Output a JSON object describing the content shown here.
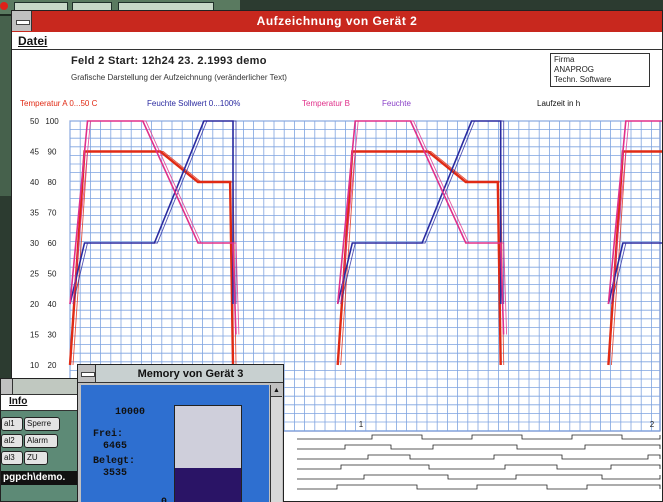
{
  "main_window": {
    "title": "Aufzeichnung von Gerät  2",
    "menu": [
      "Datei"
    ]
  },
  "info": {
    "heading": "Feld 2    Start: 12h24  23. 2.1993   demo",
    "subtitle": "Grafische Darstellung der Aufzeichnung (veränderlicher Text)",
    "company_lines": [
      "Firma",
      "ANAPROG",
      "Techn. Software"
    ]
  },
  "chart_data": {
    "type": "line",
    "legend": [
      {
        "label": "Temperatur A 0...50 C",
        "color": "#e02a14"
      },
      {
        "label": "Feuchte Sollwert 0...100%",
        "color": "#2a2aa0"
      },
      {
        "label": "Temperatur B",
        "color": "#e0308a"
      },
      {
        "label": "Feuchte",
        "color": "#8a40c8"
      },
      {
        "label": "Laufzeit in h",
        "color": "#111111"
      }
    ],
    "y_left_ticks": [
      "50",
      "45",
      "40",
      "35",
      "30",
      "25",
      "20",
      "15",
      "10"
    ],
    "y_right_ticks": [
      "100",
      "90",
      "80",
      "70",
      "60",
      "50",
      "40",
      "30",
      "20"
    ],
    "x_ticks": [
      "1",
      "2"
    ],
    "grid": true,
    "cycle_start_hours": [
      0.0,
      0.92,
      1.85
    ],
    "series": [
      {
        "name": "Temperatur A 0...50 C",
        "color": "#e02a14",
        "cycle_profile": [
          [
            0.0,
            10
          ],
          [
            0.05,
            45
          ],
          [
            0.31,
            45
          ],
          [
            0.44,
            40
          ],
          [
            0.55,
            40
          ],
          [
            0.56,
            10
          ]
        ]
      },
      {
        "name": "Feuchte Sollwert 0...100%",
        "color": "#2a2aa0",
        "cycle_profile": [
          [
            0.0,
            20
          ],
          [
            0.05,
            30
          ],
          [
            0.29,
            30
          ],
          [
            0.46,
            50
          ],
          [
            0.56,
            50
          ],
          [
            0.56,
            20
          ]
        ]
      },
      {
        "name": "Temperatur B",
        "color": "#e0308a",
        "cycle_profile": [
          [
            0.0,
            20
          ],
          [
            0.06,
            50
          ],
          [
            0.25,
            50
          ],
          [
            0.44,
            30
          ],
          [
            0.56,
            30
          ],
          [
            0.57,
            15
          ]
        ]
      }
    ]
  },
  "memory_window": {
    "title": "Memory von Gerät  3",
    "total": "10000",
    "free_label": "Frei:",
    "free_value": "6465",
    "used_label": "Belegt:",
    "used_value": "3535",
    "zero": "0",
    "used_fraction": 0.3535
  },
  "info_window": {
    "menu": "Info",
    "buttons": [
      "al1",
      "Sperre",
      "al2",
      "Alarm",
      "al3",
      "ZU"
    ],
    "path": "pgpch\\demo."
  }
}
